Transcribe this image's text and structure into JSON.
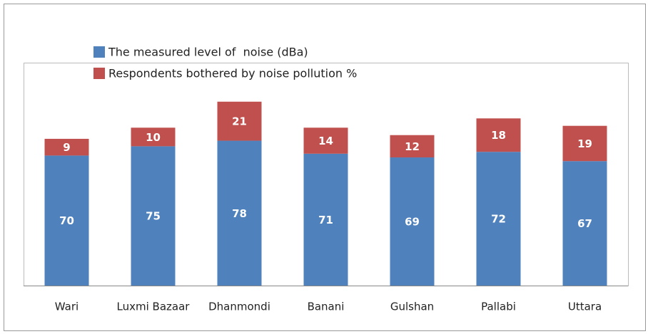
{
  "chart_data": {
    "type": "stacked-bar",
    "categories": [
      "Wari",
      "Luxmi Bazaar",
      "Dhanmondi",
      "Banani",
      "Gulshan",
      "Pallabi",
      "Uttara"
    ],
    "series": [
      {
        "name": "The measured level of  noise (dBa)",
        "color": "#4f81bd",
        "values": [
          70,
          75,
          78,
          71,
          69,
          72,
          67
        ]
      },
      {
        "name": "Respondents bothered by noise pollution %",
        "color": "#c0504d",
        "values": [
          9,
          10,
          21,
          14,
          12,
          18,
          19
        ]
      }
    ],
    "ylim": [
      0,
      120
    ],
    "legend": "top-left"
  }
}
